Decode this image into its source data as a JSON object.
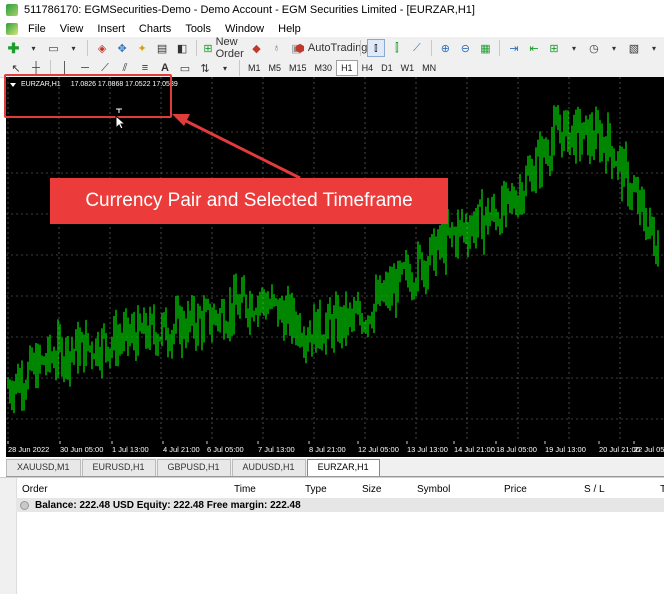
{
  "window": {
    "title": "511786170: EGMSecurities-Demo - Demo Account - EGM Securities Limited - [EURZAR,H1]"
  },
  "menu": {
    "items": [
      "File",
      "View",
      "Insert",
      "Charts",
      "Tools",
      "Window",
      "Help"
    ]
  },
  "toolbar": {
    "new_order": "New Order",
    "autotrading": "AutoTrading"
  },
  "timeframes": [
    "M1",
    "M5",
    "M15",
    "M30",
    "H1",
    "H4",
    "D1",
    "W1",
    "MN"
  ],
  "active_timeframe": "H1",
  "chart": {
    "symbol_label": "EURZAR,H1",
    "ohlc": "17.0826 17.0868 17.0522 17.0539",
    "background": "#000000",
    "candle_color": "#00c000"
  },
  "chart_data": {
    "type": "line",
    "x": [
      "28 Jun 2022",
      "30 Jun 05:00",
      "1 Jul 13:00",
      "4 Jul 21:00",
      "6 Jul 05:00",
      "7 Jul 13:00",
      "8 Jul 21:00",
      "12 Jul 05:00",
      "13 Jul 13:00",
      "14 Jul 21:00",
      "18 Jul 05:00",
      "19 Jul 13:00",
      "20 Jul 21:00",
      "22 Jul 05:00"
    ],
    "series": [
      {
        "values": [
          16.8,
          16.86,
          16.88,
          16.9,
          16.92,
          16.96,
          16.9,
          16.92,
          17.0,
          17.08,
          17.12,
          17.26,
          17.24,
          17.05
        ]
      }
    ]
  },
  "x_ticks": [
    "28 Jun 2022",
    "30 Jun 05:00",
    "1 Jul 13:00",
    "4 Jul 21:00",
    "6 Jul 05:00",
    "7 Jul 13:00",
    "8 Jul 21:00",
    "12 Jul 05:00",
    "13 Jul 13:00",
    "14 Jul 21:00",
    "18 Jul 05:00",
    "19 Jul 13:00",
    "20 Jul 21:00",
    "22 Jul 05:00"
  ],
  "tabs": [
    "XAUUSD,M1",
    "EURUSD,H1",
    "GBPUSD,H1",
    "AUDUSD,H1",
    "EURZAR,H1"
  ],
  "active_tab": "EURZAR,H1",
  "terminal": {
    "columns": [
      "Order",
      "Time",
      "Type",
      "Size",
      "Symbol",
      "Price",
      "S / L",
      "T"
    ],
    "balance_line": "Balance: 222.48 USD  Equity: 222.48  Free margin: 222.48"
  },
  "annotation": {
    "callout_text": "Currency Pair and Selected Timeframe",
    "color": "#ec3b3b"
  }
}
